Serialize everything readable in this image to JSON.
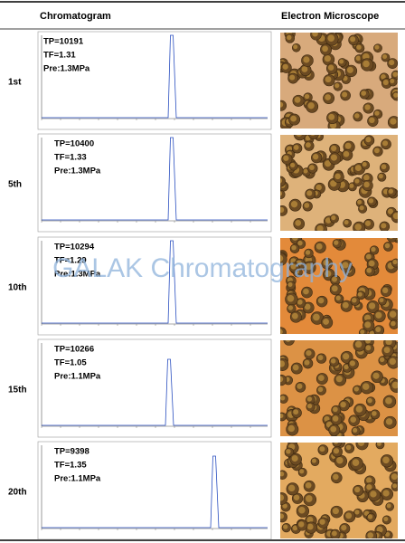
{
  "header": {
    "chromatogram": "Chromatogram",
    "microscope": "Electron Microscope"
  },
  "watermark": "GALAK Chromatography",
  "rows": [
    {
      "label": "1st",
      "tp": "TP=10191",
      "tf": "TF=1.31",
      "pre": "Pre:1.3MPa"
    },
    {
      "label": "5th",
      "tp": "TP=10400",
      "tf": "TF=1.33",
      "pre": "Pre:1.3MPa"
    },
    {
      "label": "10th",
      "tp": "TP=10294",
      "tf": "TF=1.29",
      "pre": "Pre:1.3MPa"
    },
    {
      "label": "15th",
      "tp": "TP=10266",
      "tf": "TF=1.05",
      "pre": "Pre:1.1MPa"
    },
    {
      "label": "20th",
      "tp": "TP=9398",
      "tf": "TF=1.35",
      "pre": "Pre:1.1MPa"
    }
  ]
}
